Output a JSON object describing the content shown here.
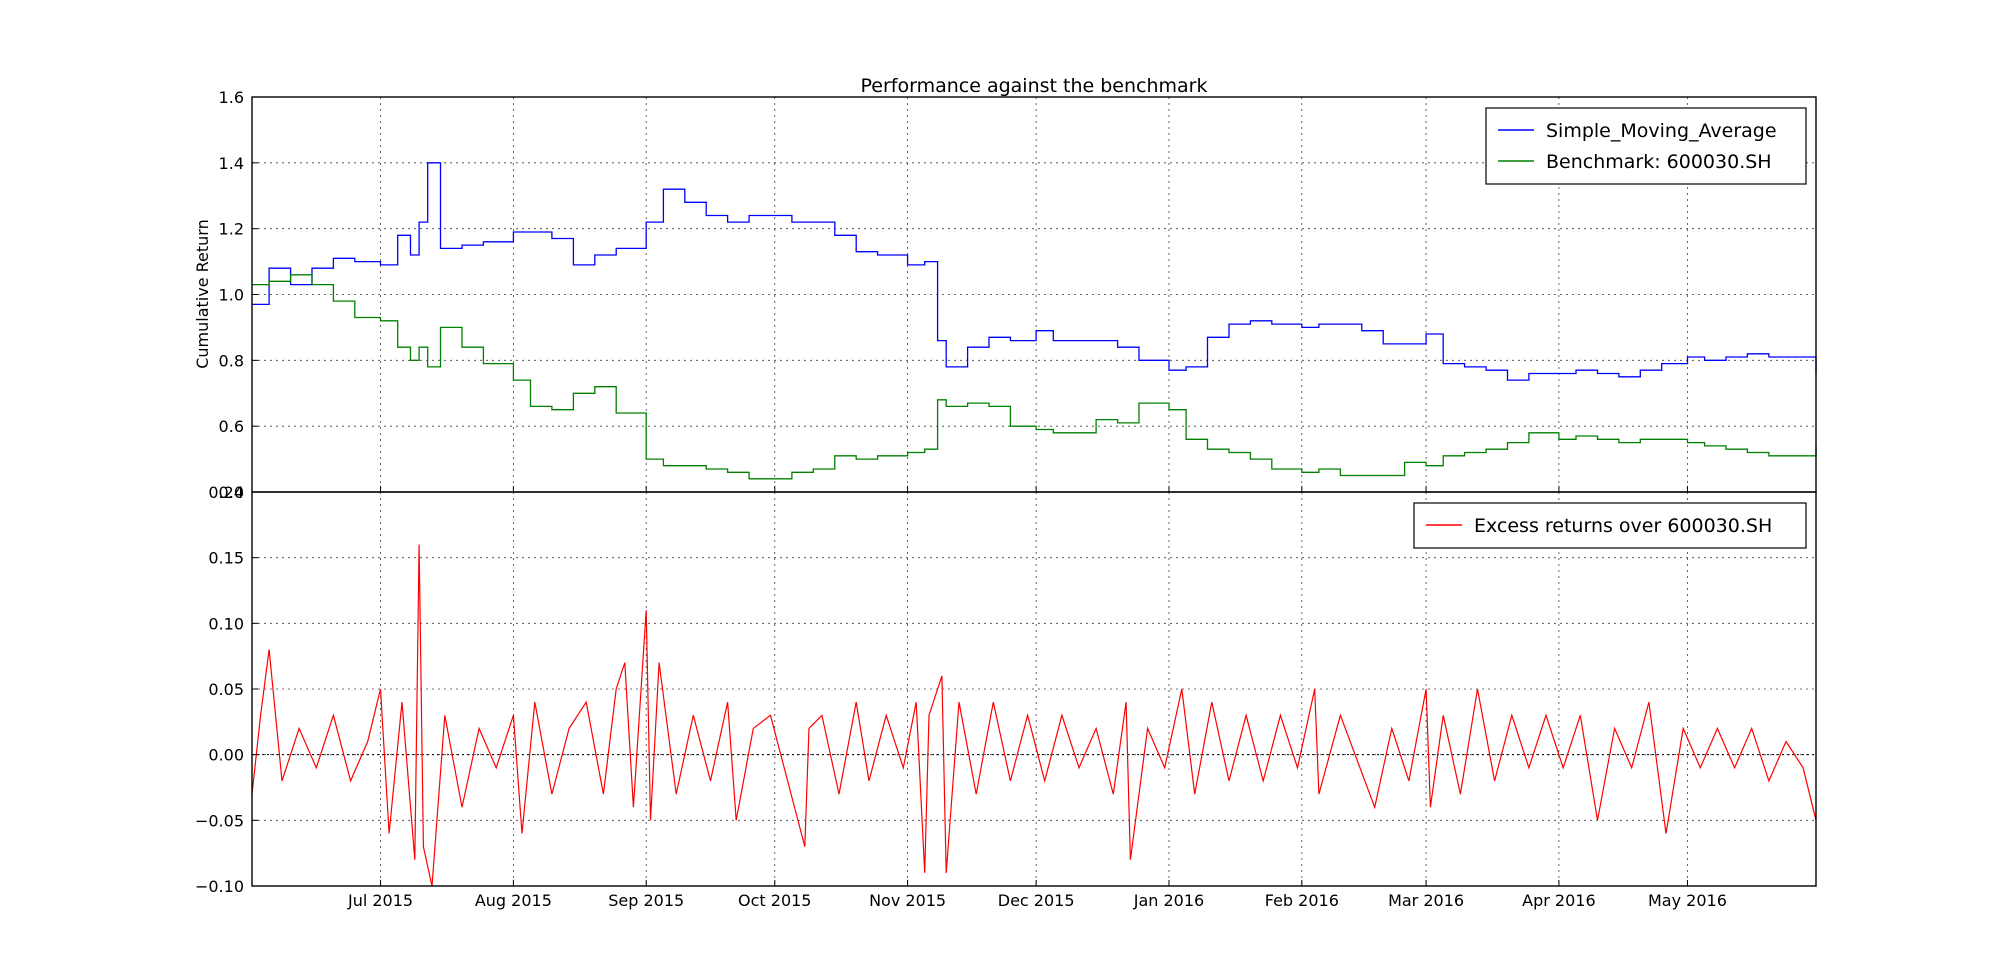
{
  "chart_data": [
    {
      "type": "line",
      "panel": "top",
      "title": "Performance against the benchmark",
      "xlabel": "",
      "ylabel": "Cumulative Return",
      "ylim": [
        0.4,
        1.6
      ],
      "yticks": [
        "0.4",
        "0.6",
        "0.8",
        "1.0",
        "1.2",
        "1.4",
        "1.6"
      ],
      "xlim": [
        "2015-06-01",
        "2016-05-31"
      ],
      "grid": true,
      "legend": "top-right",
      "series": [
        {
          "name": "Simple_Moving_Average",
          "color": "#0000ff",
          "x": [
            "2015-06-01",
            "2015-06-05",
            "2015-06-10",
            "2015-06-15",
            "2015-06-20",
            "2015-06-25",
            "2015-07-01",
            "2015-07-05",
            "2015-07-08",
            "2015-07-10",
            "2015-07-12",
            "2015-07-15",
            "2015-07-20",
            "2015-07-25",
            "2015-08-01",
            "2015-08-05",
            "2015-08-10",
            "2015-08-15",
            "2015-08-20",
            "2015-08-25",
            "2015-09-01",
            "2015-09-05",
            "2015-09-10",
            "2015-09-15",
            "2015-09-20",
            "2015-09-25",
            "2015-10-01",
            "2015-10-05",
            "2015-10-10",
            "2015-10-15",
            "2015-10-20",
            "2015-10-25",
            "2015-11-01",
            "2015-11-05",
            "2015-11-08",
            "2015-11-10",
            "2015-11-15",
            "2015-11-20",
            "2015-11-25",
            "2015-12-01",
            "2015-12-05",
            "2015-12-10",
            "2015-12-15",
            "2015-12-20",
            "2015-12-25",
            "2016-01-01",
            "2016-01-05",
            "2016-01-10",
            "2016-01-15",
            "2016-01-20",
            "2016-01-25",
            "2016-02-01",
            "2016-02-05",
            "2016-02-10",
            "2016-02-15",
            "2016-02-20",
            "2016-02-25",
            "2016-03-01",
            "2016-03-05",
            "2016-03-10",
            "2016-03-15",
            "2016-03-20",
            "2016-03-25",
            "2016-04-01",
            "2016-04-05",
            "2016-04-10",
            "2016-04-15",
            "2016-04-20",
            "2016-04-25",
            "2016-05-01",
            "2016-05-05",
            "2016-05-10",
            "2016-05-15",
            "2016-05-20",
            "2016-05-25",
            "2016-05-31"
          ],
          "y": [
            0.97,
            1.08,
            1.03,
            1.08,
            1.11,
            1.1,
            1.09,
            1.18,
            1.12,
            1.22,
            1.4,
            1.14,
            1.15,
            1.16,
            1.19,
            1.19,
            1.17,
            1.09,
            1.12,
            1.14,
            1.22,
            1.32,
            1.28,
            1.24,
            1.22,
            1.24,
            1.24,
            1.22,
            1.22,
            1.18,
            1.13,
            1.12,
            1.09,
            1.1,
            0.86,
            0.78,
            0.84,
            0.87,
            0.86,
            0.89,
            0.86,
            0.86,
            0.86,
            0.84,
            0.8,
            0.77,
            0.78,
            0.87,
            0.91,
            0.92,
            0.91,
            0.9,
            0.91,
            0.91,
            0.89,
            0.85,
            0.85,
            0.88,
            0.79,
            0.78,
            0.77,
            0.74,
            0.76,
            0.76,
            0.77,
            0.76,
            0.75,
            0.77,
            0.79,
            0.81,
            0.8,
            0.81,
            0.82,
            0.81,
            0.81,
            0.76
          ]
        },
        {
          "name": "Benchmark: 600030.SH",
          "color": "#008000",
          "x": [
            "2015-06-01",
            "2015-06-05",
            "2015-06-10",
            "2015-06-15",
            "2015-06-20",
            "2015-06-25",
            "2015-07-01",
            "2015-07-05",
            "2015-07-08",
            "2015-07-10",
            "2015-07-12",
            "2015-07-15",
            "2015-07-20",
            "2015-07-25",
            "2015-08-01",
            "2015-08-05",
            "2015-08-10",
            "2015-08-15",
            "2015-08-20",
            "2015-08-25",
            "2015-09-01",
            "2015-09-05",
            "2015-09-10",
            "2015-09-15",
            "2015-09-20",
            "2015-09-25",
            "2015-10-01",
            "2015-10-05",
            "2015-10-10",
            "2015-10-15",
            "2015-10-20",
            "2015-10-25",
            "2015-11-01",
            "2015-11-05",
            "2015-11-08",
            "2015-11-10",
            "2015-11-15",
            "2015-11-20",
            "2015-11-25",
            "2015-12-01",
            "2015-12-05",
            "2015-12-10",
            "2015-12-15",
            "2015-12-20",
            "2015-12-25",
            "2016-01-01",
            "2016-01-05",
            "2016-01-10",
            "2016-01-15",
            "2016-01-20",
            "2016-01-25",
            "2016-02-01",
            "2016-02-05",
            "2016-02-10",
            "2016-02-15",
            "2016-02-20",
            "2016-02-25",
            "2016-03-01",
            "2016-03-05",
            "2016-03-10",
            "2016-03-15",
            "2016-03-20",
            "2016-03-25",
            "2016-04-01",
            "2016-04-05",
            "2016-04-10",
            "2016-04-15",
            "2016-04-20",
            "2016-04-25",
            "2016-05-01",
            "2016-05-05",
            "2016-05-10",
            "2016-05-15",
            "2016-05-20",
            "2016-05-25",
            "2016-05-31"
          ],
          "y": [
            1.03,
            1.04,
            1.06,
            1.03,
            0.98,
            0.93,
            0.92,
            0.84,
            0.8,
            0.84,
            0.78,
            0.9,
            0.84,
            0.79,
            0.74,
            0.66,
            0.65,
            0.7,
            0.72,
            0.64,
            0.5,
            0.48,
            0.48,
            0.47,
            0.46,
            0.44,
            0.44,
            0.46,
            0.47,
            0.51,
            0.5,
            0.51,
            0.52,
            0.53,
            0.68,
            0.66,
            0.67,
            0.66,
            0.6,
            0.59,
            0.58,
            0.58,
            0.62,
            0.61,
            0.67,
            0.65,
            0.56,
            0.53,
            0.52,
            0.5,
            0.47,
            0.46,
            0.47,
            0.45,
            0.45,
            0.45,
            0.49,
            0.48,
            0.51,
            0.52,
            0.53,
            0.55,
            0.58,
            0.56,
            0.57,
            0.56,
            0.55,
            0.56,
            0.56,
            0.55,
            0.54,
            0.53,
            0.52,
            0.51,
            0.51,
            0.54
          ]
        }
      ]
    },
    {
      "type": "line",
      "panel": "bottom",
      "title": "",
      "xlabel": "",
      "ylabel": "",
      "ylim": [
        -0.1,
        0.2
      ],
      "yticks": [
        "0.20",
        "0.15",
        "0.10",
        "0.05",
        "0.00",
        "−0.05",
        "−0.10"
      ],
      "xlim": [
        "2015-06-01",
        "2016-05-31"
      ],
      "xticks": [
        {
          "date": "2015-07-01",
          "label": "Jul 2015"
        },
        {
          "date": "2015-08-01",
          "label": "Aug 2015"
        },
        {
          "date": "2015-09-01",
          "label": "Sep 2015"
        },
        {
          "date": "2015-10-01",
          "label": "Oct 2015"
        },
        {
          "date": "2015-11-01",
          "label": "Nov 2015"
        },
        {
          "date": "2015-12-01",
          "label": "Dec 2015"
        },
        {
          "date": "2016-01-01",
          "label": "Jan 2016"
        },
        {
          "date": "2016-02-01",
          "label": "Feb 2016"
        },
        {
          "date": "2016-03-01",
          "label": "Mar 2016"
        },
        {
          "date": "2016-04-01",
          "label": "Apr 2016"
        },
        {
          "date": "2016-05-01",
          "label": "May 2016"
        }
      ],
      "grid": true,
      "legend": "top-right",
      "series": [
        {
          "name": "Excess returns over 600030.SH",
          "color": "#ff0000",
          "x": [
            "2015-06-01",
            "2015-06-03",
            "2015-06-05",
            "2015-06-08",
            "2015-06-12",
            "2015-06-16",
            "2015-06-20",
            "2015-06-24",
            "2015-06-28",
            "2015-07-01",
            "2015-07-03",
            "2015-07-06",
            "2015-07-09",
            "2015-07-10",
            "2015-07-11",
            "2015-07-13",
            "2015-07-16",
            "2015-07-20",
            "2015-07-24",
            "2015-07-28",
            "2015-08-01",
            "2015-08-03",
            "2015-08-06",
            "2015-08-10",
            "2015-08-14",
            "2015-08-18",
            "2015-08-22",
            "2015-08-25",
            "2015-08-27",
            "2015-08-29",
            "2015-09-01",
            "2015-09-02",
            "2015-09-04",
            "2015-09-08",
            "2015-09-12",
            "2015-09-16",
            "2015-09-20",
            "2015-09-22",
            "2015-09-26",
            "2015-09-30",
            "2015-10-08",
            "2015-10-09",
            "2015-10-12",
            "2015-10-16",
            "2015-10-20",
            "2015-10-23",
            "2015-10-27",
            "2015-10-31",
            "2015-11-03",
            "2015-11-05",
            "2015-11-06",
            "2015-11-09",
            "2015-11-10",
            "2015-11-13",
            "2015-11-17",
            "2015-11-21",
            "2015-11-25",
            "2015-11-29",
            "2015-12-03",
            "2015-12-07",
            "2015-12-11",
            "2015-12-15",
            "2015-12-19",
            "2015-12-22",
            "2015-12-23",
            "2015-12-27",
            "2015-12-31",
            "2016-01-04",
            "2016-01-07",
            "2016-01-11",
            "2016-01-15",
            "2016-01-19",
            "2016-01-23",
            "2016-01-27",
            "2016-01-31",
            "2016-02-04",
            "2016-02-05",
            "2016-02-10",
            "2016-02-18",
            "2016-02-22",
            "2016-02-26",
            "2016-03-01",
            "2016-03-02",
            "2016-03-05",
            "2016-03-09",
            "2016-03-13",
            "2016-03-17",
            "2016-03-21",
            "2016-03-25",
            "2016-03-29",
            "2016-04-02",
            "2016-04-06",
            "2016-04-10",
            "2016-04-14",
            "2016-04-18",
            "2016-04-22",
            "2016-04-26",
            "2016-04-30",
            "2016-05-04",
            "2016-05-08",
            "2016-05-12",
            "2016-05-16",
            "2016-05-20",
            "2016-05-24",
            "2016-05-28",
            "2016-05-31"
          ],
          "y": [
            -0.03,
            0.03,
            0.08,
            -0.02,
            0.02,
            -0.01,
            0.03,
            -0.02,
            0.01,
            0.05,
            -0.06,
            0.04,
            -0.08,
            0.16,
            -0.07,
            -0.1,
            0.03,
            -0.04,
            0.02,
            -0.01,
            0.03,
            -0.06,
            0.04,
            -0.03,
            0.02,
            0.04,
            -0.03,
            0.05,
            0.07,
            -0.04,
            0.11,
            -0.05,
            0.07,
            -0.03,
            0.03,
            -0.02,
            0.04,
            -0.05,
            0.02,
            0.03,
            -0.07,
            0.02,
            0.03,
            -0.03,
            0.04,
            -0.02,
            0.03,
            -0.01,
            0.04,
            -0.09,
            0.03,
            0.06,
            -0.09,
            0.04,
            -0.03,
            0.04,
            -0.02,
            0.03,
            -0.02,
            0.03,
            -0.01,
            0.02,
            -0.03,
            0.04,
            -0.08,
            0.02,
            -0.01,
            0.05,
            -0.03,
            0.04,
            -0.02,
            0.03,
            -0.02,
            0.03,
            -0.01,
            0.05,
            -0.03,
            0.03,
            -0.04,
            0.02,
            -0.02,
            0.05,
            -0.04,
            0.03,
            -0.03,
            0.05,
            -0.02,
            0.03,
            -0.01,
            0.03,
            -0.01,
            0.03,
            -0.05,
            0.02,
            -0.01,
            0.04,
            -0.06,
            0.02,
            -0.01,
            0.02,
            -0.01,
            0.02,
            -0.02,
            0.01,
            -0.01,
            -0.05
          ]
        }
      ]
    }
  ]
}
